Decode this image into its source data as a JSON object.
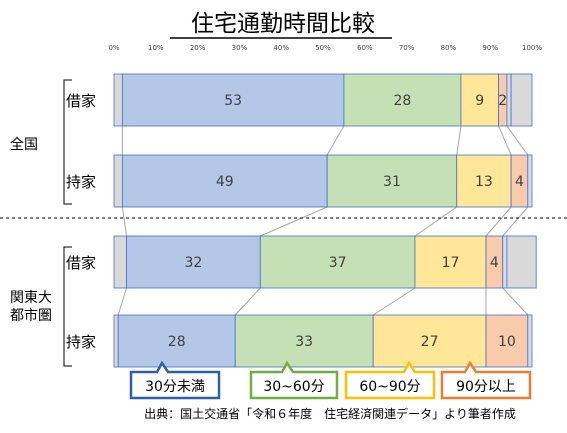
{
  "chart_data": {
    "type": "bar",
    "orientation": "horizontal-stacked-percent",
    "title": "住宅通勤時間比較",
    "xlim": [
      0,
      100
    ],
    "x_ticks": [
      "0%",
      "10%",
      "20%",
      "30%",
      "40%",
      "50%",
      "60%",
      "70%",
      "80%",
      "90%",
      "100%"
    ],
    "groups": [
      {
        "name": "全国",
        "rows": [
          {
            "label": "借家",
            "values": [
              2,
              53,
              28,
              9,
              2,
              1,
              5
            ]
          },
          {
            "label": "持家",
            "values": [
              2,
              49,
              31,
              13,
              4,
              1,
              0
            ]
          }
        ]
      },
      {
        "name": "関東大都市圏",
        "name_lines": [
          "関東大",
          "都市圏"
        ],
        "rows": [
          {
            "label": "借家",
            "values": [
              3,
              32,
              37,
              17,
              4,
              1,
              7
            ]
          },
          {
            "label": "持家",
            "values": [
              1,
              28,
              33,
              27,
              10,
              1,
              0
            ]
          }
        ]
      }
    ],
    "segments": [
      {
        "key": "s0",
        "color": "#d9d9d9",
        "labeled": false
      },
      {
        "key": "s1",
        "color": "#b4c7e7",
        "labeled": true
      },
      {
        "key": "s2",
        "color": "#c5e0b4",
        "labeled": true
      },
      {
        "key": "s3",
        "color": "#ffe699",
        "labeled": true
      },
      {
        "key": "s4",
        "color": "#f8cbad",
        "labeled": true
      },
      {
        "key": "s5",
        "color": "#d6dce5",
        "labeled": false
      },
      {
        "key": "s6",
        "color": "#d9d9d9",
        "labeled": false
      }
    ],
    "legend": [
      {
        "label": "30分未満",
        "border": "#2e5fa8"
      },
      {
        "label": "30~60分",
        "border": "#70ad47"
      },
      {
        "label": "60~90分",
        "border": "#ffc000"
      },
      {
        "label": "90分以上",
        "border": "#ed7d31"
      }
    ],
    "source": "出典：国土交通省「令和６年度　住宅経済関連データ」より筆者作成",
    "bar_stroke": "#4472c4",
    "connector_color": "#a6a6a6",
    "grid": false
  }
}
